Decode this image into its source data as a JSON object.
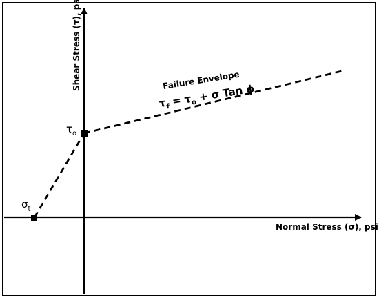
{
  "diagram": {
    "x_axis_label": "Normal Stress (σ), psi",
    "y_axis_label": "Shear Stress (τ), psi",
    "envelope_title": "Failure Envelope",
    "equation": {
      "tau_symbol": "τ",
      "tau_sub": "f",
      "equals": " = ",
      "tau0_symbol": "τ",
      "tau0_sub": "o",
      "rest": " + σ Tan ϕ"
    },
    "intercept_label": {
      "symbol": "τ",
      "sub": "o"
    },
    "tensile_label": {
      "symbol": "σ",
      "sub": "t"
    },
    "colors": {
      "line": "#000000",
      "border": "#000000",
      "background": "#ffffff"
    }
  }
}
